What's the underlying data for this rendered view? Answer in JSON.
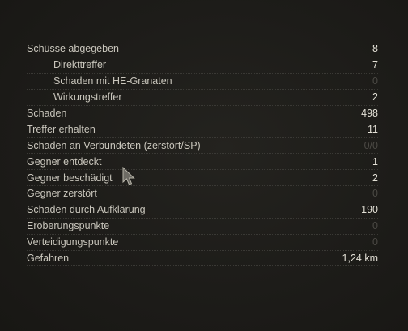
{
  "stats": [
    {
      "label": "Schüsse abgegeben",
      "value": "8",
      "indent": false,
      "zero": false
    },
    {
      "label": "Direkttreffer",
      "value": "7",
      "indent": true,
      "zero": false
    },
    {
      "label": "Schaden mit HE-Granaten",
      "value": "0",
      "indent": true,
      "zero": true
    },
    {
      "label": "Wirkungstreffer",
      "value": "2",
      "indent": true,
      "zero": false
    },
    {
      "label": "Schaden",
      "value": "498",
      "indent": false,
      "zero": false
    },
    {
      "label": "Treffer erhalten",
      "value": "11",
      "indent": false,
      "zero": false
    },
    {
      "label": "Schaden an Verbündeten (zerstört/SP)",
      "value": "0/0",
      "indent": false,
      "zero": true
    },
    {
      "label": "Gegner entdeckt",
      "value": "1",
      "indent": false,
      "zero": false
    },
    {
      "label": "Gegner beschädigt",
      "value": "2",
      "indent": false,
      "zero": false
    },
    {
      "label": "Gegner zerstört",
      "value": "0",
      "indent": false,
      "zero": true
    },
    {
      "label": "Schaden durch Aufklärung",
      "value": "190",
      "indent": false,
      "zero": false
    },
    {
      "label": "Eroberungspunkte",
      "value": "0",
      "indent": false,
      "zero": true
    },
    {
      "label": "Verteidigungspunkte",
      "value": "0",
      "indent": false,
      "zero": true
    },
    {
      "label": "Gefahren",
      "value": "1,24 km",
      "indent": false,
      "zero": false
    }
  ],
  "cursor_icon": "mouse-pointer-icon"
}
